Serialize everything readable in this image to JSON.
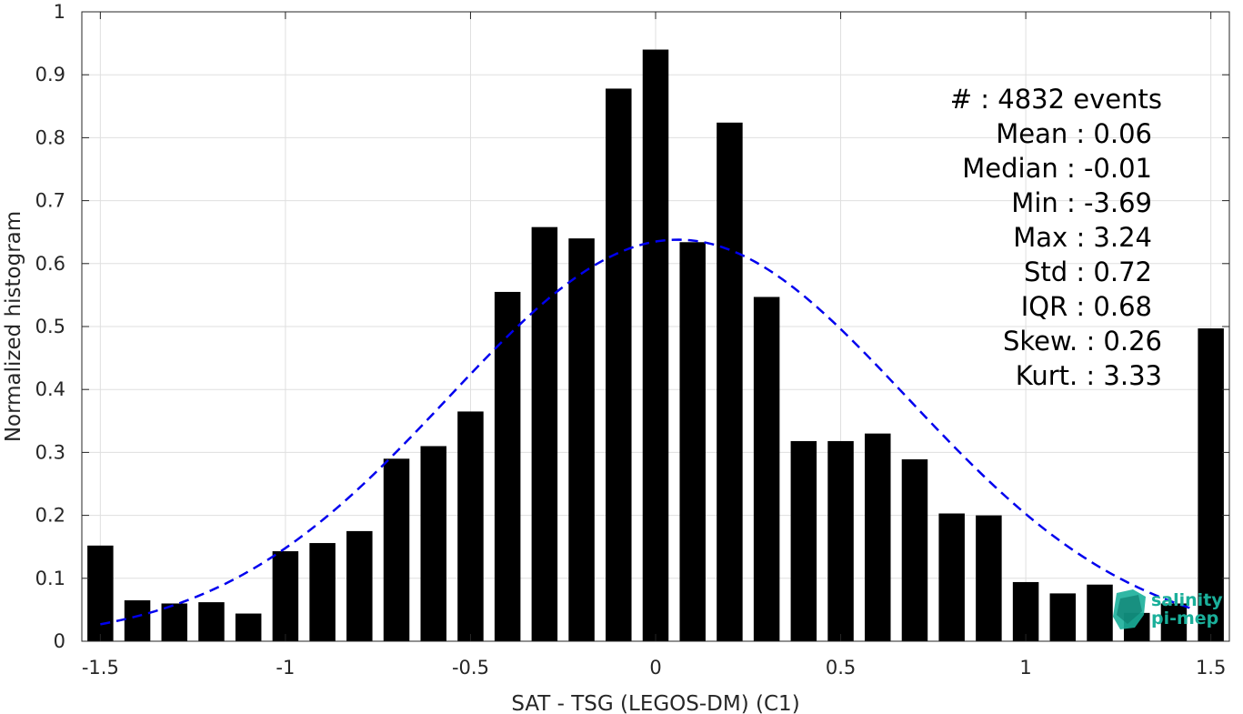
{
  "chart_data": {
    "type": "bar",
    "xlabel": "SAT - TSG (LEGOS-DM) (C1)",
    "ylabel": "Normalized histogram",
    "xlim": [
      -1.55,
      1.55
    ],
    "ylim": [
      0,
      1
    ],
    "grid": true,
    "xticks": [
      -1.5,
      -1,
      -0.5,
      0,
      0.5,
      1,
      1.5
    ],
    "xtick_labels": [
      "-1.5",
      "-1",
      "-0.5",
      "0",
      "0.5",
      "1",
      "1.5"
    ],
    "yticks": [
      0,
      0.1,
      0.2,
      0.3,
      0.4,
      0.5,
      0.6,
      0.7,
      0.8,
      0.9,
      1
    ],
    "ytick_labels": [
      "0",
      "0.1",
      "0.2",
      "0.3",
      "0.4",
      "0.5",
      "0.6",
      "0.7",
      "0.8",
      "0.9",
      "1"
    ],
    "bar_width": 0.07,
    "bars": {
      "x": [
        -1.5,
        -1.4,
        -1.3,
        -1.2,
        -1.1,
        -1.0,
        -0.9,
        -0.8,
        -0.7,
        -0.6,
        -0.5,
        -0.4,
        -0.3,
        -0.2,
        -0.1,
        0.0,
        0.1,
        0.2,
        0.3,
        0.4,
        0.5,
        0.6,
        0.7,
        0.8,
        0.9,
        1.0,
        1.1,
        1.2,
        1.3,
        1.4,
        1.5
      ],
      "values": [
        0.152,
        0.065,
        0.06,
        0.062,
        0.044,
        0.143,
        0.156,
        0.175,
        0.29,
        0.31,
        0.365,
        0.555,
        0.658,
        0.64,
        0.878,
        0.94,
        0.634,
        0.824,
        0.547,
        0.318,
        0.318,
        0.33,
        0.289,
        0.203,
        0.2,
        0.094,
        0.076,
        0.09,
        0.045,
        0.06,
        0.497
      ],
      "color": "#000000"
    },
    "fit": {
      "type": "gaussian",
      "color": "#0000ee",
      "dash": "dashed",
      "mean": 0.06,
      "std": 0.62,
      "peak": 0.638,
      "x_range": [
        -1.5,
        1.45
      ]
    },
    "annotation_lines": [
      "#  : 4832 events",
      "Mean : 0.06",
      "Median : -0.01",
      "Min : -3.69",
      "Max : 3.24",
      "Std : 0.72",
      "IQR : 0.68",
      "Skew. : 0.26",
      "Kurt. : 3.33"
    ]
  },
  "logo": {
    "line1": "salinity",
    "line2": "pi-mep",
    "icon": "pimep-logo-icon",
    "color": "#1aaf9a"
  }
}
